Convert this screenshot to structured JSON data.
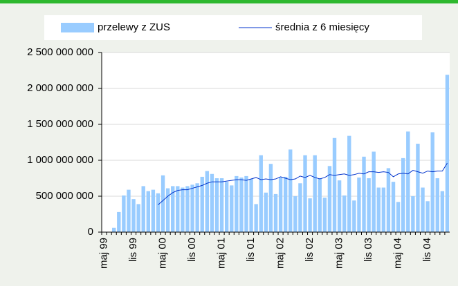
{
  "chart_data": {
    "type": "bar_line",
    "categories": [
      "maj 99",
      null,
      null,
      null,
      null,
      null,
      "lis 99",
      null,
      null,
      null,
      null,
      null,
      "maj 00",
      null,
      null,
      null,
      null,
      null,
      "lis 00",
      null,
      null,
      null,
      null,
      null,
      "maj 01",
      null,
      null,
      null,
      null,
      null,
      "lis 01",
      null,
      null,
      null,
      null,
      null,
      "maj 02",
      null,
      null,
      null,
      null,
      null,
      "lis 02",
      null,
      null,
      null,
      null,
      null,
      "maj 03",
      null,
      null,
      null,
      null,
      null,
      "lis 03",
      null,
      null,
      null,
      null,
      null,
      "maj 04",
      null,
      null,
      null,
      null,
      null,
      "lis 04",
      null,
      null,
      null,
      null
    ],
    "series": [
      {
        "name": "przelewy z ZUS",
        "color": "#99ccff",
        "kind": "bar",
        "values": [
          0,
          0,
          60000000,
          280000000,
          510000000,
          590000000,
          460000000,
          390000000,
          640000000,
          570000000,
          590000000,
          540000000,
          790000000,
          610000000,
          640000000,
          640000000,
          620000000,
          640000000,
          660000000,
          680000000,
          770000000,
          850000000,
          810000000,
          750000000,
          750000000,
          700000000,
          650000000,
          780000000,
          760000000,
          780000000,
          740000000,
          390000000,
          1070000000,
          550000000,
          950000000,
          530000000,
          760000000,
          770000000,
          1150000000,
          500000000,
          680000000,
          1070000000,
          470000000,
          1070000000,
          750000000,
          480000000,
          920000000,
          1310000000,
          720000000,
          510000000,
          1340000000,
          440000000,
          760000000,
          1050000000,
          750000000,
          1120000000,
          620000000,
          620000000,
          890000000,
          700000000,
          420000000,
          1030000000,
          1400000000,
          500000000,
          1230000000,
          620000000,
          430000000,
          1390000000,
          750000000,
          570000000,
          2190000000
        ]
      },
      {
        "name": "średnia z 6 miesięcy",
        "color": "#0033cc",
        "kind": "line",
        "values": [
          null,
          null,
          null,
          null,
          null,
          null,
          null,
          null,
          null,
          null,
          null,
          380000000,
          440000000,
          500000000,
          550000000,
          580000000,
          590000000,
          590000000,
          610000000,
          630000000,
          650000000,
          680000000,
          700000000,
          700000000,
          700000000,
          710000000,
          720000000,
          730000000,
          730000000,
          720000000,
          740000000,
          760000000,
          730000000,
          740000000,
          730000000,
          740000000,
          770000000,
          750000000,
          730000000,
          740000000,
          780000000,
          760000000,
          790000000,
          760000000,
          740000000,
          760000000,
          800000000,
          790000000,
          800000000,
          810000000,
          790000000,
          800000000,
          820000000,
          810000000,
          840000000,
          840000000,
          830000000,
          840000000,
          830000000,
          770000000,
          810000000,
          820000000,
          810000000,
          860000000,
          840000000,
          820000000,
          850000000,
          840000000,
          850000000,
          850000000,
          960000000
        ]
      }
    ],
    "ylim": [
      0,
      2500000000
    ],
    "yticks": [
      0,
      {
        "value": 500000000,
        "label": "500 000 000"
      },
      {
        "value": 1000000000,
        "label": "1 000 000 000"
      },
      {
        "value": 1500000000,
        "label": "1 500 000 000"
      },
      {
        "value": 2000000000,
        "label": "2 000 000 000"
      },
      {
        "value": 2500000000,
        "label": "2 500 000 000"
      }
    ],
    "grid": true
  }
}
